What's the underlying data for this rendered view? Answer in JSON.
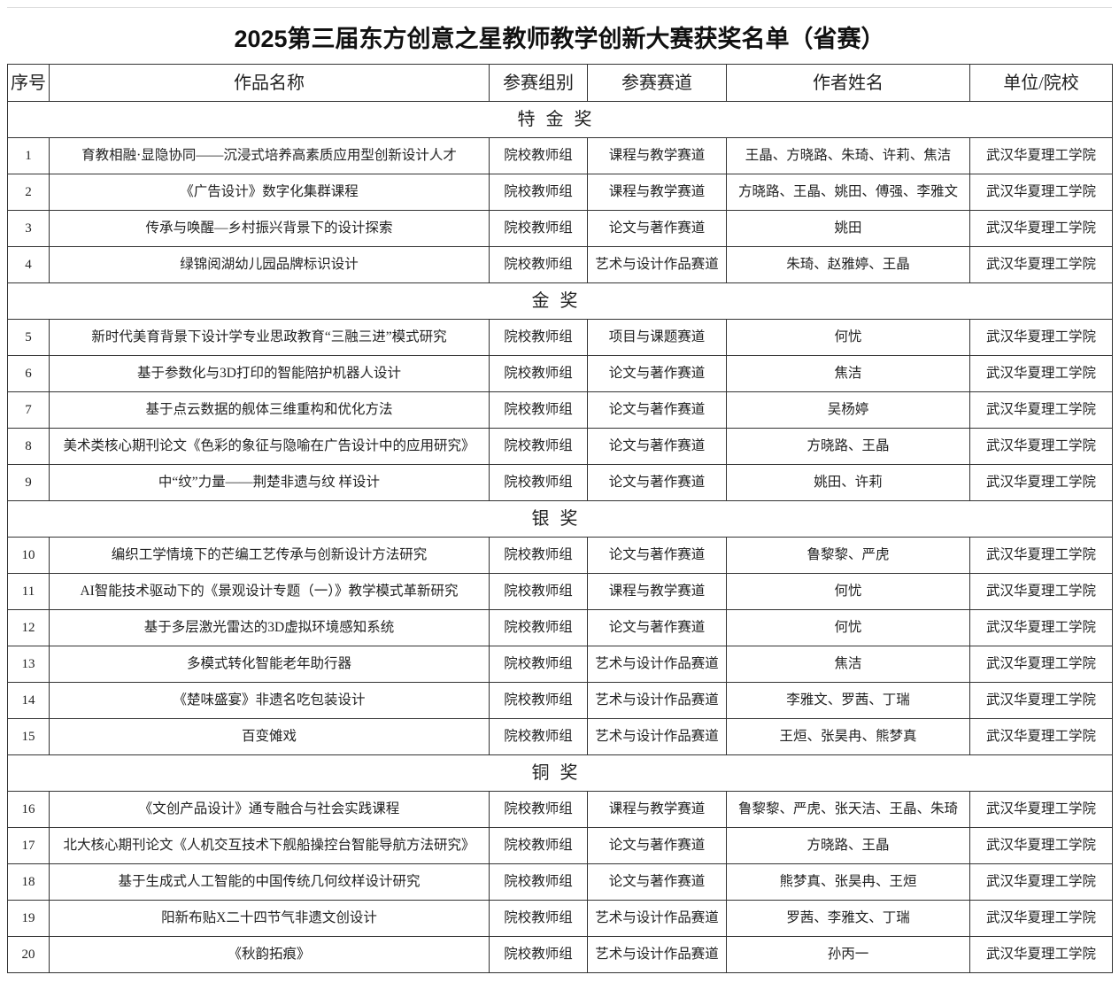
{
  "title": "2025第三届东方创意之星教师教学创新大赛获奖名单（省赛）",
  "columns": [
    "序号",
    "作品名称",
    "参赛组别",
    "参赛赛道",
    "作者姓名",
    "单位/院校"
  ],
  "sections": [
    {
      "label": "特金奖",
      "rows": [
        [
          "1",
          "育教相融·显隐协同——沉浸式培养高素质应用型创新设计人才",
          "院校教师组",
          "课程与教学赛道",
          "王晶、方晓路、朱琦、许莉、焦洁",
          "武汉华夏理工学院"
        ],
        [
          "2",
          "《广告设计》数字化集群课程",
          "院校教师组",
          "课程与教学赛道",
          "方晓路、王晶、姚田、傅强、李雅文",
          "武汉华夏理工学院"
        ],
        [
          "3",
          "传承与唤醒—乡村振兴背景下的设计探索",
          "院校教师组",
          "论文与著作赛道",
          "姚田",
          "武汉华夏理工学院"
        ],
        [
          "4",
          "绿锦阅湖幼儿园品牌标识设计",
          "院校教师组",
          "艺术与设计作品赛道",
          "朱琦、赵雅婷、王晶",
          "武汉华夏理工学院"
        ]
      ]
    },
    {
      "label": "金奖",
      "rows": [
        [
          "5",
          "新时代美育背景下设计学专业思政教育“三融三进”模式研究",
          "院校教师组",
          "项目与课题赛道",
          "何忧",
          "武汉华夏理工学院"
        ],
        [
          "6",
          "基于参数化与3D打印的智能陪护机器人设计",
          "院校教师组",
          "论文与著作赛道",
          "焦洁",
          "武汉华夏理工学院"
        ],
        [
          "7",
          "基于点云数据的舰体三维重构和优化方法",
          "院校教师组",
          "论文与著作赛道",
          "吴杨婷",
          "武汉华夏理工学院"
        ],
        [
          "8",
          "美术类核心期刊论文《色彩的象征与隐喻在广告设计中的应用研究》",
          "院校教师组",
          "论文与著作赛道",
          "方晓路、王晶",
          "武汉华夏理工学院"
        ],
        [
          "9",
          "中“纹”力量——荆楚非遗与纹 样设计",
          "院校教师组",
          "论文与著作赛道",
          "姚田、许莉",
          "武汉华夏理工学院"
        ]
      ]
    },
    {
      "label": "银奖",
      "rows": [
        [
          "10",
          "编织工学情境下的芒编工艺传承与创新设计方法研究",
          "院校教师组",
          "论文与著作赛道",
          "鲁黎黎、严虎",
          "武汉华夏理工学院"
        ],
        [
          "11",
          "AI智能技术驱动下的《景观设计专题（一）》教学模式革新研究",
          "院校教师组",
          "课程与教学赛道",
          "何忧",
          "武汉华夏理工学院"
        ],
        [
          "12",
          "基于多层激光雷达的3D虚拟环境感知系统",
          "院校教师组",
          "论文与著作赛道",
          "何忧",
          "武汉华夏理工学院"
        ],
        [
          "13",
          "多模式转化智能老年助行器",
          "院校教师组",
          "艺术与设计作品赛道",
          "焦洁",
          "武汉华夏理工学院"
        ],
        [
          "14",
          "《楚味盛宴》非遗名吃包装设计",
          "院校教师组",
          "艺术与设计作品赛道",
          "李雅文、罗茜、丁瑞",
          "武汉华夏理工学院"
        ],
        [
          "15",
          "百变傩戏",
          "院校教师组",
          "艺术与设计作品赛道",
          "王烜、张昊冉、熊梦真",
          "武汉华夏理工学院"
        ]
      ]
    },
    {
      "label": "铜奖",
      "rows": [
        [
          "16",
          "《文创产品设计》通专融合与社会实践课程",
          "院校教师组",
          "课程与教学赛道",
          "鲁黎黎、严虎、张天洁、王晶、朱琦",
          "武汉华夏理工学院"
        ],
        [
          "17",
          "北大核心期刊论文《人机交互技术下舰船操控台智能导航方法研究》",
          "院校教师组",
          "论文与著作赛道",
          "方晓路、王晶",
          "武汉华夏理工学院"
        ],
        [
          "18",
          "基于生成式人工智能的中国传统几何纹样设计研究",
          "院校教师组",
          "论文与著作赛道",
          "熊梦真、张昊冉、王烜",
          "武汉华夏理工学院"
        ],
        [
          "19",
          "阳新布贴X二十四节气非遗文创设计",
          "院校教师组",
          "艺术与设计作品赛道",
          "罗茜、李雅文、丁瑞",
          "武汉华夏理工学院"
        ],
        [
          "20",
          "《秋韵拓痕》",
          "院校教师组",
          "艺术与设计作品赛道",
          "孙丙一",
          "武汉华夏理工学院"
        ]
      ]
    }
  ]
}
